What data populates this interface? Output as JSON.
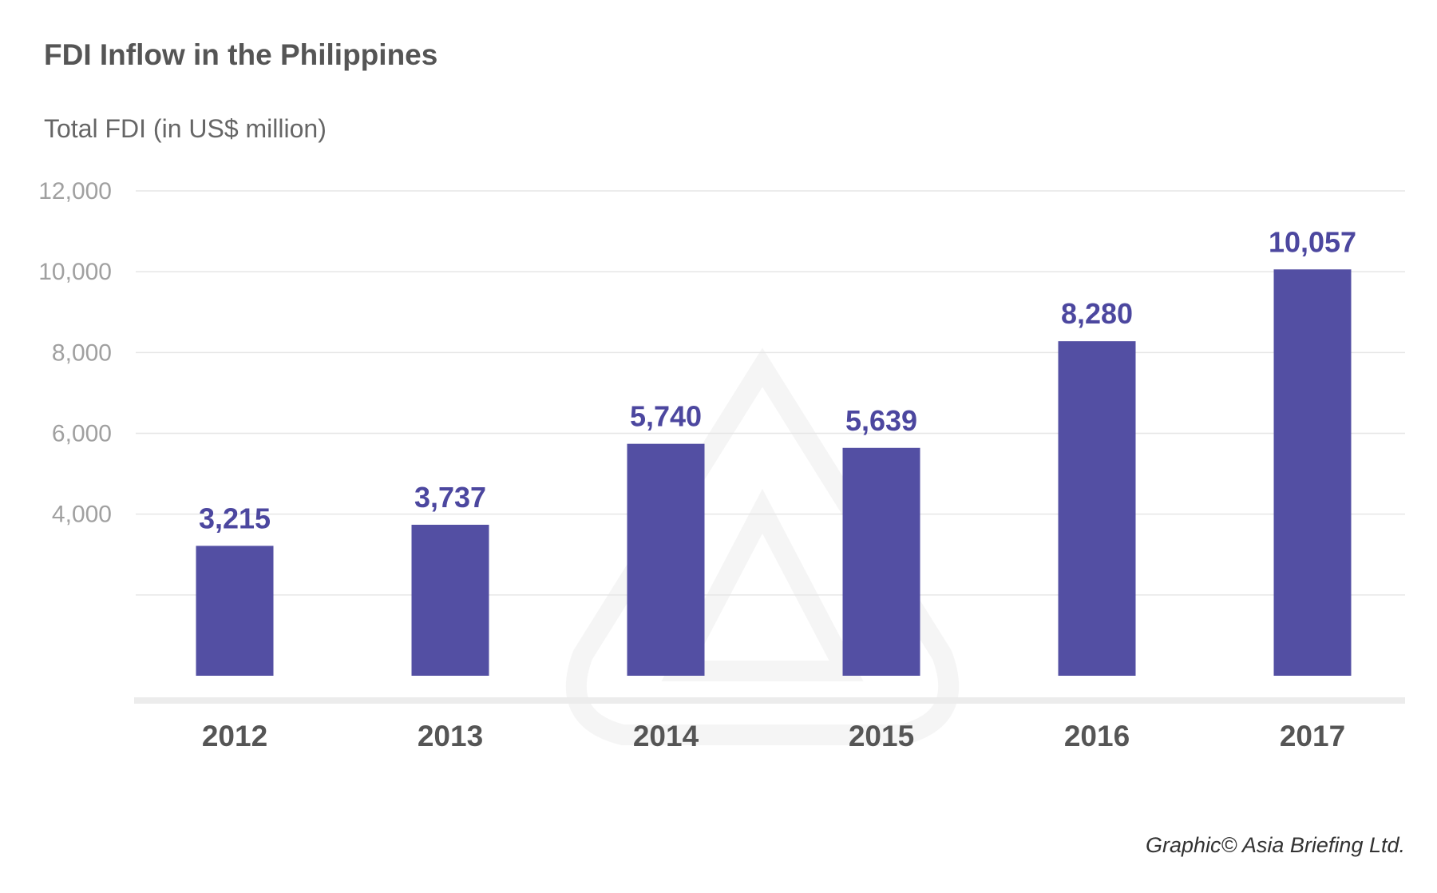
{
  "title": "FDI Inflow in the Philippines",
  "subtitle": "Total FDI (in US$ million)",
  "footer": "Graphic© Asia Briefing Ltd.",
  "chart_data": {
    "type": "bar",
    "title": "FDI Inflow in the Philippines",
    "ylabel": "Total FDI (in US$ million)",
    "xlabel": "",
    "categories": [
      "2012",
      "2013",
      "2014",
      "2015",
      "2016",
      "2017"
    ],
    "values": [
      3215,
      3737,
      5740,
      5639,
      8280,
      10057
    ],
    "value_labels": [
      "3,215",
      "3,737",
      "5,740",
      "5,639",
      "8,280",
      "10,057"
    ],
    "ylim": [
      0,
      12000
    ],
    "yticks": [
      2000,
      4000,
      6000,
      8000,
      10000,
      12000
    ],
    "ytick_labels": [
      "",
      "4,000",
      "6,000",
      "8,000",
      "10,000",
      "12,000"
    ],
    "grid": true,
    "bar_color": "#534fa3",
    "label_color": "#4c479f"
  }
}
